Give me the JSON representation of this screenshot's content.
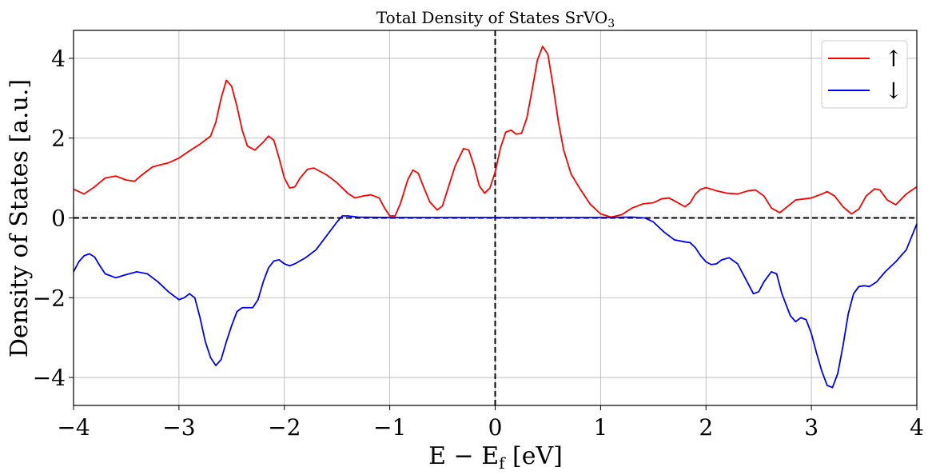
{
  "chart_data": {
    "type": "line",
    "title": "Total Density of States SrVO",
    "title_subscript": "3",
    "xlabel": "E − E",
    "xlabel_subscript": "f",
    "xlabel_unit": " [eV]",
    "ylabel": "Density of States [a.u.]",
    "xlim": [
      -4,
      4
    ],
    "ylim": [
      -4.7,
      4.7
    ],
    "xticks": [
      -4,
      -3,
      -2,
      -1,
      0,
      1,
      2,
      3,
      4
    ],
    "xtick_labels": [
      "−4",
      "−3",
      "−2",
      "−1",
      "0",
      "1",
      "2",
      "3",
      "4"
    ],
    "yticks": [
      -4,
      -2,
      0,
      2,
      4
    ],
    "ytick_labels": [
      "−4",
      "−2",
      "0",
      "2",
      "4"
    ],
    "grid": true,
    "legend_position": "top-right",
    "reference_lines": [
      {
        "orientation": "vertical",
        "value": 0,
        "style": "dashed",
        "color": "#000000"
      },
      {
        "orientation": "horizontal",
        "value": 0,
        "style": "dashed",
        "color": "#000000"
      }
    ],
    "series": [
      {
        "name": "↑",
        "color": "#ff0000",
        "points": [
          [
            -4.0,
            0.72
          ],
          [
            -3.9,
            0.6
          ],
          [
            -3.8,
            0.78
          ],
          [
            -3.7,
            1.0
          ],
          [
            -3.6,
            1.05
          ],
          [
            -3.5,
            0.95
          ],
          [
            -3.42,
            0.92
          ],
          [
            -3.35,
            1.08
          ],
          [
            -3.25,
            1.28
          ],
          [
            -3.1,
            1.38
          ],
          [
            -3.0,
            1.5
          ],
          [
            -2.9,
            1.68
          ],
          [
            -2.8,
            1.85
          ],
          [
            -2.7,
            2.05
          ],
          [
            -2.65,
            2.4
          ],
          [
            -2.6,
            3.0
          ],
          [
            -2.55,
            3.45
          ],
          [
            -2.5,
            3.3
          ],
          [
            -2.45,
            2.8
          ],
          [
            -2.4,
            2.2
          ],
          [
            -2.35,
            1.8
          ],
          [
            -2.28,
            1.7
          ],
          [
            -2.2,
            1.9
          ],
          [
            -2.15,
            2.05
          ],
          [
            -2.1,
            1.95
          ],
          [
            -2.05,
            1.5
          ],
          [
            -2.0,
            1.0
          ],
          [
            -1.95,
            0.75
          ],
          [
            -1.9,
            0.78
          ],
          [
            -1.85,
            1.0
          ],
          [
            -1.78,
            1.22
          ],
          [
            -1.72,
            1.25
          ],
          [
            -1.6,
            1.08
          ],
          [
            -1.5,
            0.88
          ],
          [
            -1.4,
            0.62
          ],
          [
            -1.33,
            0.5
          ],
          [
            -1.25,
            0.55
          ],
          [
            -1.18,
            0.58
          ],
          [
            -1.1,
            0.5
          ],
          [
            -1.05,
            0.25
          ],
          [
            -1.0,
            0.05
          ],
          [
            -0.95,
            0.05
          ],
          [
            -0.9,
            0.35
          ],
          [
            -0.83,
            0.95
          ],
          [
            -0.78,
            1.2
          ],
          [
            -0.73,
            1.12
          ],
          [
            -0.68,
            0.78
          ],
          [
            -0.62,
            0.4
          ],
          [
            -0.55,
            0.2
          ],
          [
            -0.5,
            0.3
          ],
          [
            -0.45,
            0.72
          ],
          [
            -0.38,
            1.3
          ],
          [
            -0.3,
            1.74
          ],
          [
            -0.25,
            1.7
          ],
          [
            -0.2,
            1.3
          ],
          [
            -0.15,
            0.8
          ],
          [
            -0.1,
            0.62
          ],
          [
            -0.05,
            0.75
          ],
          [
            0.0,
            1.15
          ],
          [
            0.05,
            1.75
          ],
          [
            0.1,
            2.15
          ],
          [
            0.15,
            2.2
          ],
          [
            0.2,
            2.1
          ],
          [
            0.25,
            2.12
          ],
          [
            0.3,
            2.5
          ],
          [
            0.35,
            3.2
          ],
          [
            0.4,
            3.95
          ],
          [
            0.45,
            4.3
          ],
          [
            0.5,
            4.1
          ],
          [
            0.55,
            3.3
          ],
          [
            0.6,
            2.4
          ],
          [
            0.65,
            1.7
          ],
          [
            0.72,
            1.1
          ],
          [
            0.8,
            0.75
          ],
          [
            0.9,
            0.35
          ],
          [
            1.0,
            0.1
          ],
          [
            1.1,
            0.02
          ],
          [
            1.2,
            0.08
          ],
          [
            1.3,
            0.25
          ],
          [
            1.4,
            0.35
          ],
          [
            1.5,
            0.38
          ],
          [
            1.58,
            0.48
          ],
          [
            1.65,
            0.5
          ],
          [
            1.72,
            0.4
          ],
          [
            1.8,
            0.28
          ],
          [
            1.85,
            0.38
          ],
          [
            1.9,
            0.6
          ],
          [
            1.95,
            0.72
          ],
          [
            2.0,
            0.76
          ],
          [
            2.1,
            0.68
          ],
          [
            2.2,
            0.62
          ],
          [
            2.3,
            0.6
          ],
          [
            2.4,
            0.68
          ],
          [
            2.47,
            0.7
          ],
          [
            2.55,
            0.55
          ],
          [
            2.62,
            0.25
          ],
          [
            2.7,
            0.13
          ],
          [
            2.78,
            0.3
          ],
          [
            2.85,
            0.45
          ],
          [
            3.0,
            0.5
          ],
          [
            3.1,
            0.6
          ],
          [
            3.15,
            0.66
          ],
          [
            3.22,
            0.55
          ],
          [
            3.3,
            0.28
          ],
          [
            3.38,
            0.1
          ],
          [
            3.45,
            0.22
          ],
          [
            3.52,
            0.55
          ],
          [
            3.6,
            0.73
          ],
          [
            3.65,
            0.7
          ],
          [
            3.72,
            0.45
          ],
          [
            3.8,
            0.33
          ],
          [
            3.9,
            0.6
          ],
          [
            4.0,
            0.78
          ]
        ]
      },
      {
        "name": "↓",
        "color": "#0000ff",
        "points": [
          [
            -4.0,
            -1.35
          ],
          [
            -3.95,
            -1.1
          ],
          [
            -3.9,
            -0.95
          ],
          [
            -3.85,
            -0.9
          ],
          [
            -3.8,
            -0.98
          ],
          [
            -3.75,
            -1.2
          ],
          [
            -3.7,
            -1.4
          ],
          [
            -3.6,
            -1.5
          ],
          [
            -3.5,
            -1.42
          ],
          [
            -3.4,
            -1.35
          ],
          [
            -3.3,
            -1.4
          ],
          [
            -3.2,
            -1.6
          ],
          [
            -3.1,
            -1.85
          ],
          [
            -3.0,
            -2.05
          ],
          [
            -2.95,
            -2.0
          ],
          [
            -2.9,
            -1.9
          ],
          [
            -2.85,
            -2.0
          ],
          [
            -2.8,
            -2.5
          ],
          [
            -2.75,
            -3.1
          ],
          [
            -2.7,
            -3.5
          ],
          [
            -2.65,
            -3.7
          ],
          [
            -2.6,
            -3.55
          ],
          [
            -2.55,
            -3.1
          ],
          [
            -2.5,
            -2.7
          ],
          [
            -2.45,
            -2.35
          ],
          [
            -2.4,
            -2.25
          ],
          [
            -2.3,
            -2.25
          ],
          [
            -2.25,
            -2.05
          ],
          [
            -2.2,
            -1.6
          ],
          [
            -2.15,
            -1.25
          ],
          [
            -2.1,
            -1.08
          ],
          [
            -2.05,
            -1.05
          ],
          [
            -2.0,
            -1.15
          ],
          [
            -1.95,
            -1.2
          ],
          [
            -1.9,
            -1.15
          ],
          [
            -1.8,
            -1.0
          ],
          [
            -1.7,
            -0.8
          ],
          [
            -1.6,
            -0.45
          ],
          [
            -1.5,
            -0.1
          ],
          [
            -1.45,
            0.05
          ],
          [
            -1.4,
            0.05
          ],
          [
            -1.3,
            0.02
          ],
          [
            -1.0,
            0.01
          ],
          [
            -0.5,
            0.01
          ],
          [
            0.0,
            0.01
          ],
          [
            0.5,
            0.01
          ],
          [
            1.0,
            0.01
          ],
          [
            1.3,
            0.02
          ],
          [
            1.42,
            0.0
          ],
          [
            1.5,
            -0.1
          ],
          [
            1.6,
            -0.35
          ],
          [
            1.7,
            -0.55
          ],
          [
            1.8,
            -0.6
          ],
          [
            1.85,
            -0.62
          ],
          [
            1.9,
            -0.75
          ],
          [
            1.95,
            -0.95
          ],
          [
            2.0,
            -1.1
          ],
          [
            2.05,
            -1.17
          ],
          [
            2.1,
            -1.15
          ],
          [
            2.15,
            -1.05
          ],
          [
            2.22,
            -1.0
          ],
          [
            2.3,
            -1.15
          ],
          [
            2.38,
            -1.55
          ],
          [
            2.45,
            -1.9
          ],
          [
            2.5,
            -1.85
          ],
          [
            2.55,
            -1.6
          ],
          [
            2.62,
            -1.35
          ],
          [
            2.67,
            -1.4
          ],
          [
            2.72,
            -1.9
          ],
          [
            2.8,
            -2.45
          ],
          [
            2.85,
            -2.6
          ],
          [
            2.9,
            -2.5
          ],
          [
            2.95,
            -2.55
          ],
          [
            3.0,
            -2.9
          ],
          [
            3.05,
            -3.4
          ],
          [
            3.1,
            -3.85
          ],
          [
            3.15,
            -4.2
          ],
          [
            3.2,
            -4.25
          ],
          [
            3.25,
            -3.9
          ],
          [
            3.3,
            -3.2
          ],
          [
            3.35,
            -2.4
          ],
          [
            3.4,
            -1.9
          ],
          [
            3.45,
            -1.72
          ],
          [
            3.5,
            -1.7
          ],
          [
            3.55,
            -1.72
          ],
          [
            3.62,
            -1.6
          ],
          [
            3.7,
            -1.35
          ],
          [
            3.8,
            -1.1
          ],
          [
            3.9,
            -0.8
          ],
          [
            4.0,
            -0.15
          ]
        ]
      }
    ]
  }
}
